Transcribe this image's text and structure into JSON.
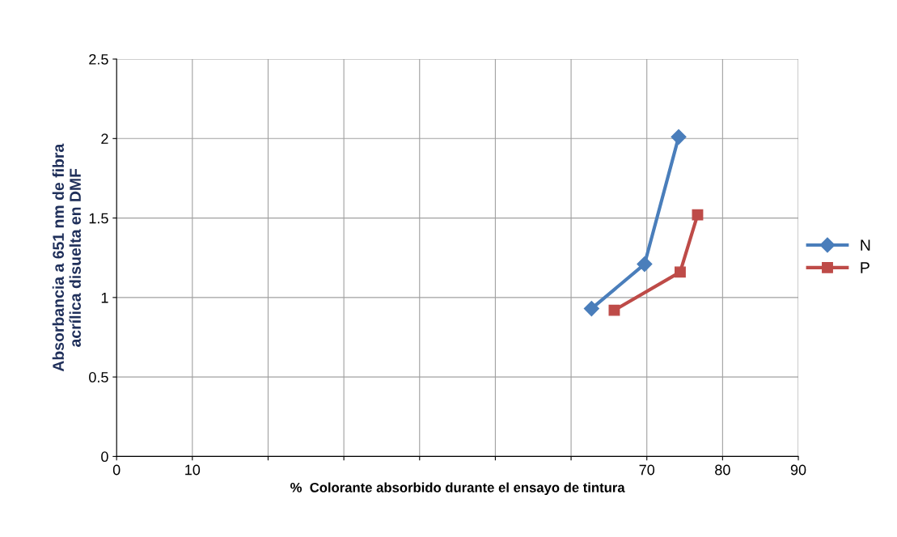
{
  "chart_data": {
    "type": "line",
    "xlabel": "%  Colorante absorbido durante el ensayo de tintura",
    "ylabel": "Absorbancia a 651 nm de fibra\nacrílica disuelta en DMF",
    "series": [
      {
        "name": "N",
        "color": "#4a7ebb",
        "marker": "diamond",
        "x": [
          62.7,
          69.7,
          74.2
        ],
        "values": [
          0.93,
          1.21,
          2.01
        ]
      },
      {
        "name": "P",
        "color": "#be4b48",
        "marker": "square",
        "x": [
          65.7,
          74.4,
          76.7
        ],
        "values": [
          0.92,
          1.16,
          1.52
        ]
      }
    ],
    "xlim": [
      0,
      90
    ],
    "xticks": [
      0,
      10,
      {
        "value": 20,
        "label": null
      },
      {
        "value": 30,
        "label": null
      },
      {
        "value": 40,
        "label": null
      },
      {
        "value": 50,
        "label": null
      },
      {
        "value": 60,
        "label": null
      },
      70,
      80,
      90
    ],
    "ylim": [
      0,
      2.5
    ],
    "yticks": [
      0,
      0.5,
      1,
      1.5,
      2,
      2.5
    ],
    "grid": true,
    "legend": "right"
  }
}
